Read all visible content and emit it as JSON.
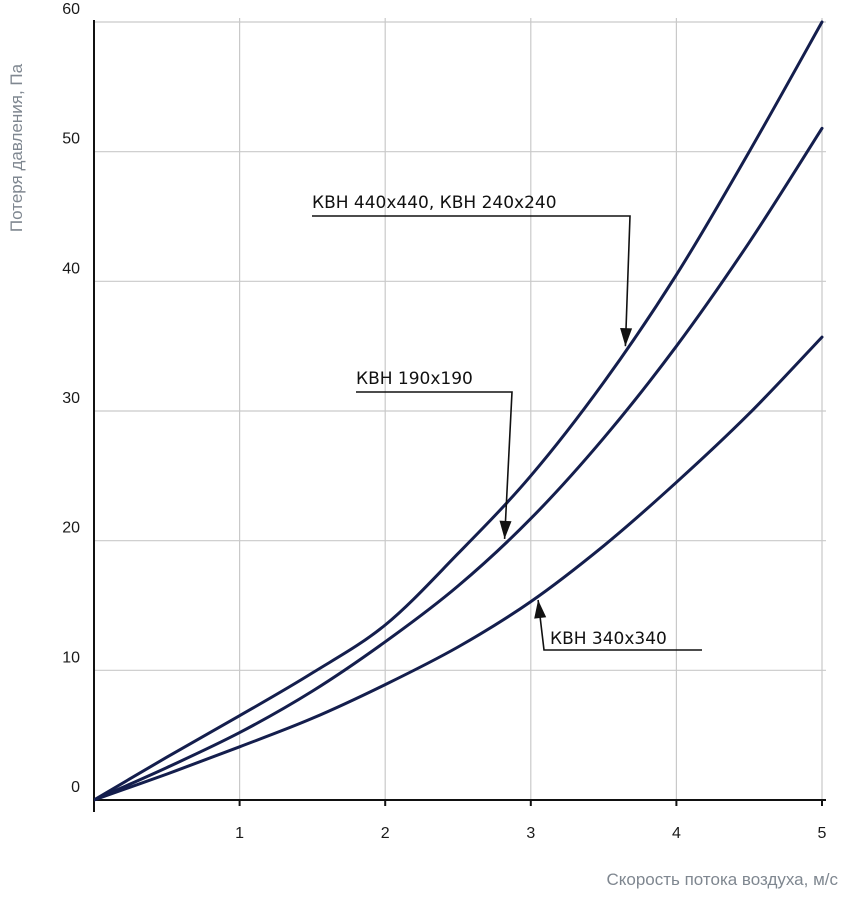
{
  "chart_data": {
    "type": "line",
    "title": "",
    "xlabel": "Скорость потока воздуха, м/с",
    "ylabel": "Потеря давления, Па",
    "xlim": [
      0,
      5
    ],
    "ylim": [
      0,
      60
    ],
    "xticks": [
      "1",
      "2",
      "3",
      "4",
      "5"
    ],
    "yticks": [
      "0",
      "10",
      "20",
      "30",
      "40",
      "50",
      "60"
    ],
    "grid": true,
    "series": [
      {
        "name": "КВН 440x440, КВН 240x240",
        "x": [
          0,
          0.5,
          1,
          1.5,
          2,
          2.5,
          3,
          3.5,
          4,
          4.5,
          5
        ],
        "y": [
          0,
          3.3,
          6.5,
          9.8,
          13.5,
          19,
          25,
          32.2,
          40.5,
          50,
          60
        ]
      },
      {
        "name": "КВН 190x190",
        "x": [
          0,
          0.5,
          1,
          1.5,
          2,
          2.5,
          3,
          3.5,
          4,
          4.5,
          5
        ],
        "y": [
          0,
          2.5,
          5.2,
          8.4,
          12.2,
          16.5,
          21.7,
          27.9,
          35,
          43,
          51.8
        ]
      },
      {
        "name": "КВН 340x340",
        "x": [
          0,
          0.5,
          1,
          1.5,
          2,
          2.5,
          3,
          3.5,
          4,
          4.5,
          5
        ],
        "y": [
          0,
          2.0,
          4.1,
          6.3,
          8.9,
          11.8,
          15.3,
          19.6,
          24.5,
          29.8,
          35.7
        ]
      }
    ],
    "annotations": [
      {
        "text": "КВН 440x440, КВН 240x240",
        "series": 0,
        "x": 3.65
      },
      {
        "text": "КВН 190x190",
        "series": 1,
        "x": 2.82
      },
      {
        "text": "КВН 340x340",
        "series": 2,
        "x": 3.05
      }
    ]
  }
}
